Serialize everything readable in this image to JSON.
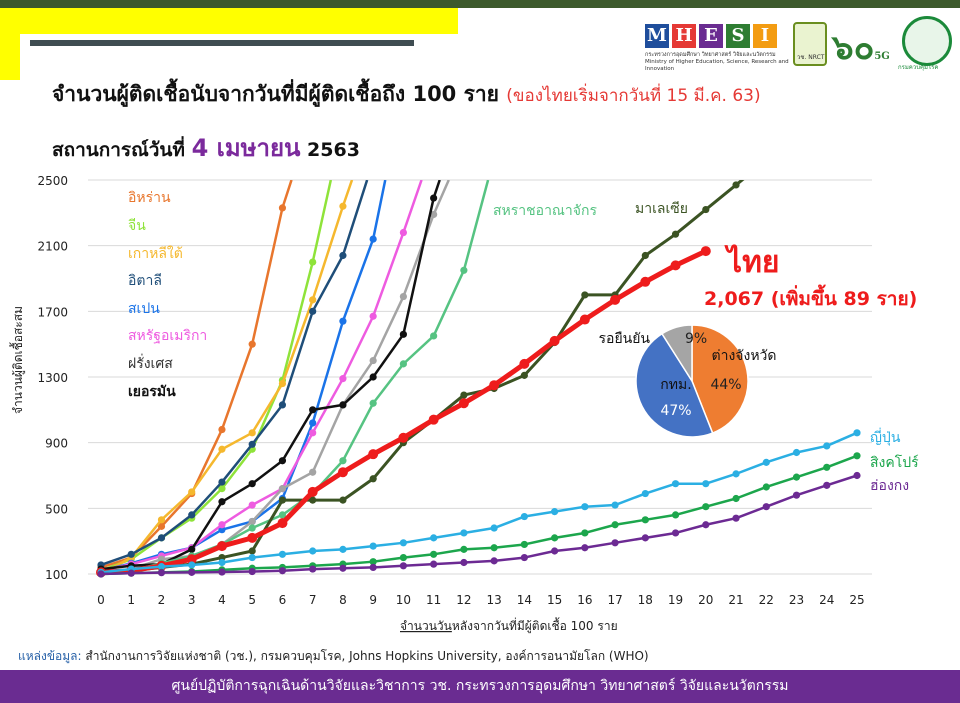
{
  "header": {
    "title": "จำนวนผู้ติดเชื้อนับจากวันที่มีผู้ติดเชื้อถึง 100 ราย",
    "title_note": "(ของไทยเริ่มจากวันที่ 15 มี.ค. 63)",
    "subtitle_prefix": "สถานการณ์วันที่",
    "subtitle_date": "4 เมษายน",
    "subtitle_year": "2563"
  },
  "logos": {
    "mhesi_letters": [
      "M",
      "H",
      "E",
      "S",
      "I"
    ],
    "mhesi_colors": [
      "#1f4e9c",
      "#e53935",
      "#6a2c91",
      "#2e7d32",
      "#f39c12"
    ],
    "mhesi_sub": "กระทรวงการอุดมศึกษา วิทยาศาสตร์ วิจัยและนวัตกรรม Ministry of Higher Education, Science, Research and Innovation",
    "nrct_label": "วช. NRCT",
    "sixty_label": "๖๐",
    "fiveg_label": "5G",
    "moph_label": "กรมควบคุมโรค"
  },
  "chart_data": {
    "type": "line",
    "xlabel_emphasis": "จำนวนวัน",
    "xlabel_rest": "หลังจากวันที่มีผู้ติดเชื้อ 100 ราย",
    "ylabel": "จำนวนผู้ติดเชื้อสะสม",
    "xlim": [
      0,
      25
    ],
    "ylim": [
      100,
      2500
    ],
    "x_ticks": [
      0,
      1,
      2,
      3,
      4,
      5,
      6,
      7,
      8,
      9,
      10,
      11,
      12,
      13,
      14,
      15,
      16,
      17,
      18,
      19,
      20,
      21,
      22,
      23,
      24,
      25
    ],
    "y_ticks": [
      100,
      500,
      900,
      1300,
      1700,
      2100,
      2500
    ],
    "y_tick_labels": [
      "100",
      "500",
      "900",
      "1300",
      "1700",
      "2100",
      "2500"
    ],
    "grid": true,
    "series": [
      {
        "name": "อิหร่าน",
        "color": "#e8762d",
        "width": 2.5,
        "x": [
          0,
          1,
          2,
          3,
          4,
          5,
          6,
          6.3
        ],
        "y": [
          140,
          200,
          390,
          590,
          980,
          1500,
          2330,
          2500
        ]
      },
      {
        "name": "จีน",
        "color": "#8fe33a",
        "width": 2.5,
        "x": [
          0,
          1,
          2,
          3,
          4,
          5,
          6,
          7,
          7.6
        ],
        "y": [
          120,
          190,
          320,
          440,
          620,
          860,
          1280,
          2000,
          2500
        ]
      },
      {
        "name": "เกาหลีใต้",
        "color": "#f5b82e",
        "width": 2.5,
        "x": [
          0,
          1,
          2,
          3,
          4,
          5,
          6,
          7,
          8,
          8.3
        ],
        "y": [
          100,
          200,
          430,
          600,
          860,
          960,
          1260,
          1770,
          2340,
          2500
        ]
      },
      {
        "name": "อิตาลี",
        "color": "#1f4e79",
        "width": 2.5,
        "x": [
          0,
          1,
          2,
          3,
          4,
          5,
          6,
          7,
          8,
          8.8
        ],
        "y": [
          155,
          220,
          320,
          460,
          660,
          890,
          1130,
          1700,
          2040,
          2500
        ]
      },
      {
        "name": "สเปน",
        "color": "#1a73e8",
        "width": 2.5,
        "x": [
          0,
          1,
          2,
          3,
          4,
          5,
          6,
          7,
          8,
          9,
          9.4
        ],
        "y": [
          120,
          165,
          220,
          260,
          370,
          420,
          560,
          1020,
          1640,
          2140,
          2500
        ]
      },
      {
        "name": "สหรัฐอเมริกา",
        "color": "#ee5be0",
        "width": 2.5,
        "x": [
          0,
          1,
          2,
          3,
          4,
          5,
          6,
          7,
          8,
          9,
          10,
          10.6
        ],
        "y": [
          120,
          160,
          210,
          260,
          400,
          520,
          620,
          960,
          1290,
          1670,
          2180,
          2500
        ]
      },
      {
        "name": "ฝรั่งเศส",
        "color": "#a4a4a4",
        "width": 2.5,
        "x": [
          0,
          1,
          2,
          3,
          4,
          5,
          6,
          7,
          8,
          9,
          10,
          11,
          11.5
        ],
        "y": [
          100,
          130,
          190,
          210,
          280,
          420,
          620,
          720,
          1130,
          1400,
          1790,
          2290,
          2500
        ]
      },
      {
        "name": "เยอรมัน",
        "color": "#111111",
        "width": 2.5,
        "x": [
          0,
          1,
          2,
          3,
          4,
          5,
          6,
          7,
          8,
          9,
          10,
          11,
          11.2
        ],
        "y": [
          130,
          150,
          160,
          250,
          540,
          650,
          790,
          1100,
          1130,
          1300,
          1560,
          2390,
          2500
        ]
      },
      {
        "name": "สหราชอาณาจักร",
        "color": "#56c382",
        "width": 2.5,
        "x": [
          0,
          1,
          2,
          3,
          4,
          5,
          6,
          7,
          8,
          9,
          10,
          11,
          12,
          12.8
        ],
        "y": [
          110,
          120,
          165,
          210,
          280,
          380,
          460,
          590,
          790,
          1140,
          1380,
          1550,
          1950,
          2500
        ]
      },
      {
        "name": "มาเลเซีย",
        "color": "#3b5323",
        "width": 3,
        "x": [
          0,
          1,
          2,
          3,
          4,
          5,
          6,
          7,
          8,
          9,
          10,
          11,
          12,
          13,
          14,
          15,
          16,
          17,
          18,
          19,
          20,
          21,
          22
        ],
        "y": [
          110,
          120,
          140,
          160,
          200,
          240,
          550,
          550,
          550,
          680,
          900,
          1040,
          1190,
          1230,
          1310,
          1510,
          1800,
          1800,
          2040,
          2170,
          2320,
          2470,
          2620
        ]
      },
      {
        "name": "ไทย",
        "color": "#ee1c1c",
        "width": 5,
        "x": [
          0,
          1,
          2,
          3,
          4,
          5,
          6,
          7,
          8,
          9,
          10,
          11,
          12,
          13,
          14,
          15,
          16,
          17,
          18,
          19,
          20
        ],
        "y": [
          110,
          120,
          150,
          190,
          270,
          320,
          410,
          600,
          720,
          830,
          930,
          1040,
          1140,
          1250,
          1380,
          1520,
          1650,
          1770,
          1880,
          1980,
          2067
        ]
      },
      {
        "name": "ญี่ปุ่น",
        "color": "#2bafe3",
        "width": 2.5,
        "x": [
          0,
          1,
          2,
          3,
          4,
          5,
          6,
          7,
          8,
          9,
          10,
          11,
          12,
          13,
          14,
          15,
          16,
          17,
          18,
          19,
          20,
          21,
          22,
          23,
          24,
          25
        ],
        "y": [
          110,
          130,
          145,
          155,
          170,
          200,
          220,
          240,
          250,
          270,
          290,
          320,
          350,
          380,
          450,
          480,
          510,
          520,
          590,
          650,
          650,
          710,
          780,
          840,
          880,
          960
        ]
      },
      {
        "name": "สิงคโปร์",
        "color": "#1ca64c",
        "width": 2.5,
        "x": [
          0,
          1,
          2,
          3,
          4,
          5,
          6,
          7,
          8,
          9,
          10,
          11,
          12,
          13,
          14,
          15,
          16,
          17,
          18,
          19,
          20,
          21,
          22,
          23,
          24,
          25
        ],
        "y": [
          100,
          105,
          110,
          115,
          125,
          135,
          140,
          150,
          160,
          175,
          200,
          220,
          250,
          260,
          280,
          320,
          350,
          400,
          430,
          460,
          510,
          560,
          630,
          690,
          750,
          820
        ]
      },
      {
        "name": "ฮ่องกง",
        "color": "#6c2a93",
        "width": 2.5,
        "x": [
          0,
          1,
          2,
          3,
          4,
          5,
          6,
          7,
          8,
          9,
          10,
          11,
          12,
          13,
          14,
          15,
          16,
          17,
          18,
          19,
          20,
          21,
          22,
          23,
          24,
          25
        ],
        "y": [
          100,
          105,
          108,
          110,
          112,
          115,
          120,
          130,
          135,
          140,
          150,
          160,
          170,
          180,
          200,
          240,
          260,
          290,
          320,
          350,
          400,
          440,
          510,
          580,
          640,
          700
        ]
      }
    ],
    "labels": {
      "iran": "อิหร่าน",
      "china": "จีน",
      "korea": "เกาหลีใต้",
      "italy": "อิตาลี",
      "spain": "สเปน",
      "usa": "สหรัฐอเมริกา",
      "france": "ฝรั่งเศส",
      "germany": "เยอรมัน",
      "uk": "สหราชอาณาจักร",
      "malaysia": "มาเลเซีย",
      "thailand": "ไทย",
      "thailand_total": "2,067 (เพิ่มขึ้น 89 ราย)",
      "japan": "ญี่ปุ่น",
      "singapore": "สิงคโปร์",
      "hongkong": "ฮ่องกง"
    },
    "label_colors": {
      "iran": "#e8762d",
      "china": "#8fe33a",
      "korea": "#f5b82e",
      "italy": "#1f4e79",
      "spain": "#1a73e8",
      "usa": "#ee5be0",
      "france": "#333333",
      "germany": "#111111",
      "uk": "#56c382",
      "malaysia": "#3b5323",
      "thailand": "#ee1c1c",
      "japan": "#2bafe3",
      "singapore": "#1ca64c",
      "hongkong": "#6c2a93"
    },
    "pie": {
      "type": "pie",
      "slices": [
        {
          "label": "ต่างจังหวัด",
          "value": 44,
          "value_text": "44%",
          "color": "#ee7d31"
        },
        {
          "label": "กทม.",
          "value": 47,
          "value_text": "47%",
          "color": "#4472c4"
        },
        {
          "label": "รอยืนยัน",
          "value": 9,
          "value_text": "9%",
          "color": "#a5a5a5"
        }
      ]
    }
  },
  "footer": {
    "source_label": "แหล่งข้อมูล:",
    "source_text": " สำนักงานการวิจัยแห่งชาติ (วช.), กรมควบคุมโรค, Johns Hopkins University, องค์การอนามัยโลก (WHO)",
    "bar_text": "ศูนย์ปฏิบัติการฉุกเฉินด้านวิจัยและวิชาการ   วช.   กระทรวงการอุดมศึกษา วิทยาศาสตร์ วิจัยและนวัตกรรม"
  }
}
